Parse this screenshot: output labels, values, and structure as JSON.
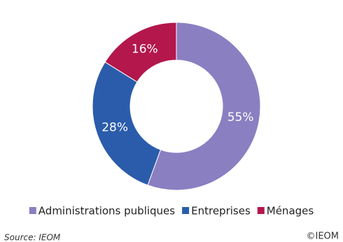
{
  "chart_data": {
    "type": "pie",
    "categories": [
      "Administrations publiques",
      "Entreprises",
      "Ménages"
    ],
    "values": [
      55,
      28,
      16
    ],
    "value_labels": [
      "55%",
      "28%",
      "16%"
    ],
    "colors": [
      "#8a7fc1",
      "#2b5cab",
      "#b3174b"
    ],
    "source": "Source: IEOM",
    "copyright": "©IEOM"
  }
}
